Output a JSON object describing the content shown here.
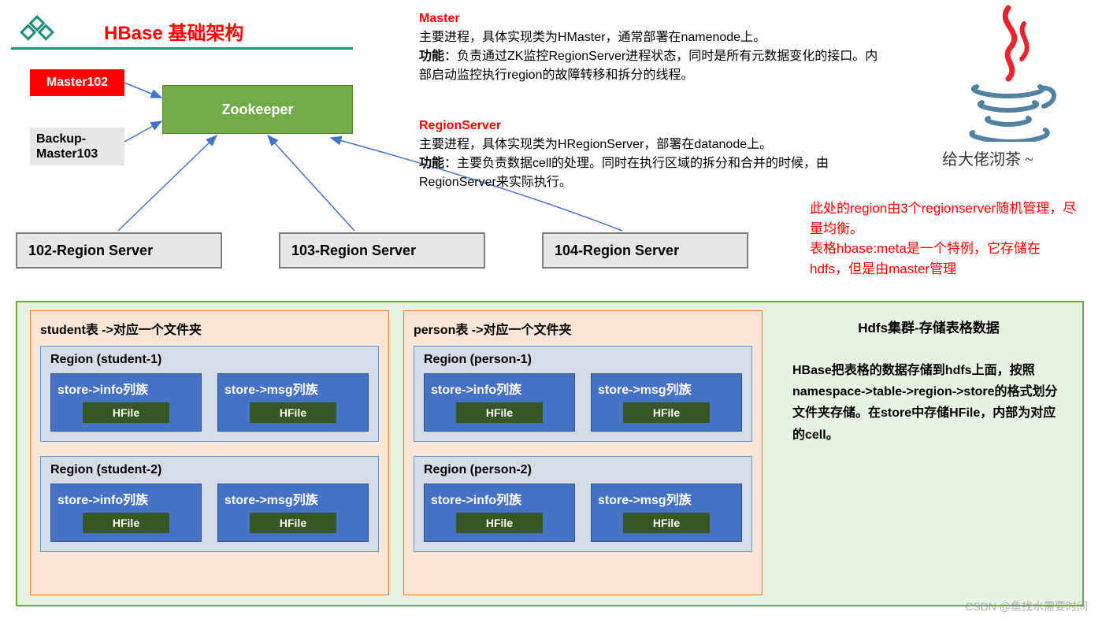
{
  "title": "HBase 基础架构",
  "colors": {
    "accent_red": "#ff0000",
    "green_teal": "#1e8c7a",
    "zookeeper_bg": "#70ad47",
    "zookeeper_border": "#548235",
    "grey_box": "#e6e6e6",
    "grey_border": "#7f7f7f",
    "hdfs_panel_bg": "#e8f2e2",
    "hdfs_panel_border": "#70ad47",
    "table_bg": "#fbe5d6",
    "table_border": "#ed7d31",
    "region_bg": "#d6dce5",
    "region_border": "#5b9bd5",
    "store_bg": "#4472c4",
    "store_border": "#2f528f",
    "hfile_bg": "#385723",
    "arrow_blue": "#4472c4"
  },
  "master": {
    "label": "Master102"
  },
  "backup": {
    "label": "Backup-Master103"
  },
  "zookeeper": {
    "label": "Zookeeper"
  },
  "region_servers": [
    {
      "label": "102-Region Server"
    },
    {
      "label": "103-Region Server"
    },
    {
      "label": "104-Region Server"
    }
  ],
  "desc_master": {
    "heading": "Master",
    "line1": "主要进程，具体实现类为HMaster，通常部署在namenode上。",
    "line2_label": "功能",
    "line2_body": "：负责通过ZK监控RegionServer进程状态，同时是所有元数据变化的接口。内部启动监控执行region的故障转移和拆分的线程。"
  },
  "desc_rs": {
    "heading": "RegionServer",
    "line1": "主要进程，具体实现类为HRegionServer，部署在datanode上。",
    "line2_label": "功能",
    "line2_body": "：主要负责数据cell的处理。同时在执行区域的拆分和合并的时候，由RegionServer来实际执行。"
  },
  "side_note": {
    "line1": "此处的region由3个regionserver随机管理，尽量均衡。",
    "line2": "表格hbase:meta是一个特例，它存储在hdfs，但是由master管理"
  },
  "java_caption": "给大佬沏茶 ~",
  "hdfs": {
    "title": "Hdfs集群-存储表格数据",
    "body": "HBase把表格的数据存储到hdfs上面，按照namespace->table->region->store的格式划分文件夹存储。在store中存储HFile，内部为对应的cell。",
    "tables": [
      {
        "title": "student表 ->对应一个文件夹",
        "regions": [
          {
            "title": "Region (student-1)",
            "stores": [
              "store->info列族",
              "store->msg列族"
            ]
          },
          {
            "title": "Region (student-2)",
            "stores": [
              "store->info列族",
              "store->msg列族"
            ]
          }
        ]
      },
      {
        "title": "person表 ->对应一个文件夹",
        "regions": [
          {
            "title": "Region (person-1)",
            "stores": [
              "store->info列族",
              "store->msg列族"
            ]
          },
          {
            "title": "Region (person-2)",
            "stores": [
              "store->info列族",
              "store->msg列族"
            ]
          }
        ]
      }
    ],
    "hfile_label": "HFile"
  },
  "watermark": "CSDN @鱼找水需要时间"
}
